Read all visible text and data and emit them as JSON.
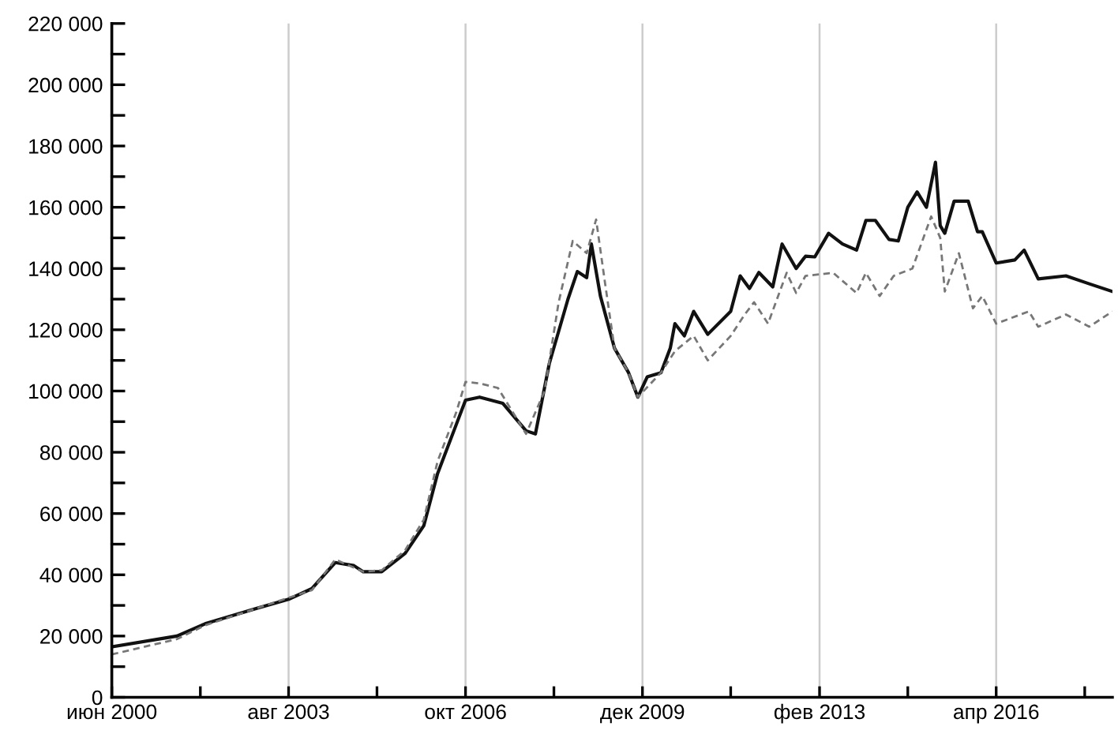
{
  "chart_data": {
    "type": "line",
    "grid": "x",
    "xlim": [
      "2000-06",
      "2018-05"
    ],
    "ylim": [
      0,
      220000
    ],
    "xticks": [
      {
        "value": "2000-06",
        "label": "июн 2000"
      },
      {
        "value": "2002-01",
        "label": null
      },
      {
        "value": "2003-08",
        "label": "авг 2003"
      },
      {
        "value": "2005-03",
        "label": null
      },
      {
        "value": "2006-10",
        "label": "окт 2006"
      },
      {
        "value": "2008-05",
        "label": null
      },
      {
        "value": "2009-12",
        "label": "дек 2009"
      },
      {
        "value": "2011-07",
        "label": null
      },
      {
        "value": "2013-02",
        "label": "фев 2013"
      },
      {
        "value": "2014-09",
        "label": null
      },
      {
        "value": "2016-04",
        "label": "апр 2016"
      },
      {
        "value": "2017-11",
        "label": null
      }
    ],
    "yticks": [
      {
        "value": 0,
        "label": "0"
      },
      {
        "value": 10000,
        "label": null
      },
      {
        "value": 20000,
        "label": "20 000"
      },
      {
        "value": 30000,
        "label": null
      },
      {
        "value": 40000,
        "label": "40 000"
      },
      {
        "value": 50000,
        "label": null
      },
      {
        "value": 60000,
        "label": "60 000"
      },
      {
        "value": 70000,
        "label": null
      },
      {
        "value": 80000,
        "label": "80 000"
      },
      {
        "value": 90000,
        "label": null
      },
      {
        "value": 100000,
        "label": "100 000"
      },
      {
        "value": 110000,
        "label": null
      },
      {
        "value": 120000,
        "label": "120 000"
      },
      {
        "value": 130000,
        "label": null
      },
      {
        "value": 140000,
        "label": "140 000"
      },
      {
        "value": 150000,
        "label": null
      },
      {
        "value": 160000,
        "label": "160 000"
      },
      {
        "value": 170000,
        "label": null
      },
      {
        "value": 180000,
        "label": "180 000"
      },
      {
        "value": 190000,
        "label": null
      },
      {
        "value": 200000,
        "label": "200 000"
      },
      {
        "value": 210000,
        "label": null
      },
      {
        "value": 220000,
        "label": "220 000"
      }
    ],
    "series": [
      {
        "color": "#111111",
        "line_style": "solid",
        "x": [
          "2000-06",
          "2001-08",
          "2002-02",
          "2003-01",
          "2003-08",
          "2004-01",
          "2004-06",
          "2004-10",
          "2004-12",
          "2005-04",
          "2005-09",
          "2006-01",
          "2006-04",
          "2006-08",
          "2006-10",
          "2007-01",
          "2007-06",
          "2007-11",
          "2008-01",
          "2008-04",
          "2008-08",
          "2008-10",
          "2008-12",
          "2009-01",
          "2009-03",
          "2009-06",
          "2009-09",
          "2009-11",
          "2010-01",
          "2010-04",
          "2010-06",
          "2010-07",
          "2010-09",
          "2010-11",
          "2011-02",
          "2011-07",
          "2011-09",
          "2011-11",
          "2012-01",
          "2012-04",
          "2012-06",
          "2012-09",
          "2012-11",
          "2013-01",
          "2013-04",
          "2013-07",
          "2013-10",
          "2013-12",
          "2014-02",
          "2014-05",
          "2014-07",
          "2014-09",
          "2014-11",
          "2015-01",
          "2015-03",
          "2015-04",
          "2015-05",
          "2015-07",
          "2015-10",
          "2015-12",
          "2016-01",
          "2016-04",
          "2016-08",
          "2016-10",
          "2017-01",
          "2017-07",
          "2017-12",
          "2018-05"
        ],
        "values": [
          16500,
          20000,
          24000,
          29000,
          32000,
          35500,
          44000,
          43000,
          41000,
          41000,
          47000,
          56000,
          73000,
          89000,
          97000,
          98000,
          96000,
          87000,
          86000,
          109000,
          130000,
          139000,
          137000,
          148000,
          131000,
          114000,
          106000,
          98000,
          104600,
          106000,
          114000,
          122000,
          118000,
          126000,
          118500,
          126000,
          137600,
          133500,
          138700,
          134000,
          148000,
          140000,
          144000,
          143800,
          151500,
          148000,
          146000,
          155700,
          155700,
          149500,
          149000,
          160000,
          165000,
          160000,
          174700,
          154000,
          151500,
          162000,
          162000,
          152000,
          152000,
          141800,
          142800,
          146000,
          136600,
          137600,
          135000,
          132500
        ]
      },
      {
        "color": "#777777",
        "line_style": "dashed",
        "x": [
          "2000-06",
          "2001-08",
          "2002-02",
          "2003-01",
          "2003-08",
          "2004-01",
          "2004-06",
          "2004-12",
          "2005-04",
          "2005-09",
          "2006-01",
          "2006-04",
          "2006-08",
          "2006-10",
          "2007-01",
          "2007-05",
          "2007-11",
          "2008-03",
          "2008-06",
          "2008-09",
          "2008-12",
          "2009-02",
          "2009-04",
          "2009-06",
          "2009-09",
          "2009-11",
          "2010-04",
          "2010-07",
          "2010-11",
          "2011-02",
          "2011-07",
          "2011-10",
          "2011-12",
          "2012-03",
          "2012-07",
          "2012-09",
          "2012-11",
          "2013-05",
          "2013-10",
          "2013-12",
          "2014-03",
          "2014-06",
          "2014-10",
          "2015-02",
          "2015-04",
          "2015-05",
          "2015-08",
          "2015-11",
          "2016-01",
          "2016-04",
          "2016-11",
          "2017-01",
          "2017-07",
          "2017-12",
          "2018-05"
        ],
        "values": [
          14000,
          19000,
          23500,
          29000,
          32500,
          35000,
          45000,
          41000,
          41500,
          48000,
          58000,
          77000,
          93000,
          103000,
          102500,
          101000,
          86000,
          100000,
          129000,
          149000,
          145000,
          156000,
          135000,
          114000,
          106000,
          98000,
          106000,
          113000,
          118000,
          110000,
          118000,
          125000,
          129000,
          122000,
          138600,
          132000,
          137600,
          138600,
          132000,
          138600,
          131000,
          137600,
          140000,
          157000,
          150000,
          132500,
          145000,
          127000,
          131000,
          122000,
          126000,
          121000,
          125000,
          121000,
          126000
        ]
      }
    ]
  }
}
